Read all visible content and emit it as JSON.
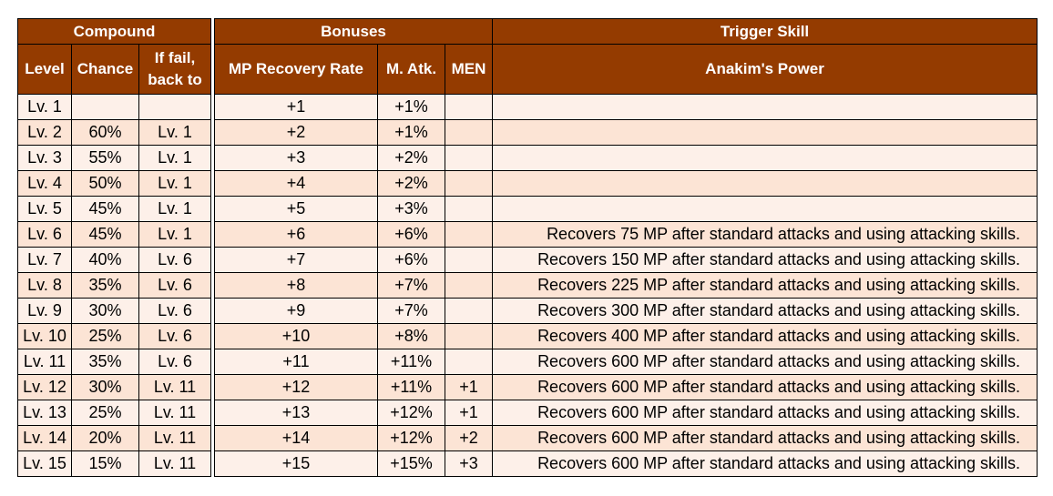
{
  "headers": {
    "compound": "Compound",
    "bonuses": "Bonuses",
    "trigger_skill": "Trigger Skill",
    "level": "Level",
    "chance": "Chance",
    "if_fail_line1": "If fail,",
    "if_fail_line2": "back to",
    "mp_recovery": "MP Recovery Rate",
    "m_atk": "M. Atk.",
    "men": "MEN",
    "skill_name": "Anakim's Power"
  },
  "rows": [
    {
      "level": "Lv. 1",
      "chance": "",
      "fail": "",
      "mp": "+1",
      "matk": "+1%",
      "men": "",
      "skill": ""
    },
    {
      "level": "Lv. 2",
      "chance": "60%",
      "fail": "Lv. 1",
      "mp": "+2",
      "matk": "+1%",
      "men": "",
      "skill": ""
    },
    {
      "level": "Lv. 3",
      "chance": "55%",
      "fail": "Lv. 1",
      "mp": "+3",
      "matk": "+2%",
      "men": "",
      "skill": ""
    },
    {
      "level": "Lv. 4",
      "chance": "50%",
      "fail": "Lv. 1",
      "mp": "+4",
      "matk": "+2%",
      "men": "",
      "skill": ""
    },
    {
      "level": "Lv. 5",
      "chance": "45%",
      "fail": "Lv. 1",
      "mp": "+5",
      "matk": "+3%",
      "men": "",
      "skill": ""
    },
    {
      "level": "Lv. 6",
      "chance": "45%",
      "fail": "Lv. 1",
      "mp": "+6",
      "matk": "+6%",
      "men": "",
      "skill": "Recovers 75 MP after standard attacks and using attacking skills."
    },
    {
      "level": "Lv. 7",
      "chance": "40%",
      "fail": "Lv. 6",
      "mp": "+7",
      "matk": "+6%",
      "men": "",
      "skill": "Recovers 150 MP after standard attacks and using attacking skills."
    },
    {
      "level": "Lv. 8",
      "chance": "35%",
      "fail": "Lv. 6",
      "mp": "+8",
      "matk": "+7%",
      "men": "",
      "skill": "Recovers 225 MP after standard attacks and using attacking skills."
    },
    {
      "level": "Lv. 9",
      "chance": "30%",
      "fail": "Lv. 6",
      "mp": "+9",
      "matk": "+7%",
      "men": "",
      "skill": "Recovers 300 MP after standard attacks and using attacking skills."
    },
    {
      "level": "Lv. 10",
      "chance": "25%",
      "fail": "Lv. 6",
      "mp": "+10",
      "matk": "+8%",
      "men": "",
      "skill": "Recovers 400 MP after standard attacks and using attacking skills."
    },
    {
      "level": "Lv. 11",
      "chance": "35%",
      "fail": "Lv. 6",
      "mp": "+11",
      "matk": "+11%",
      "men": "",
      "skill": "Recovers 600 MP after standard attacks and using attacking skills."
    },
    {
      "level": "Lv. 12",
      "chance": "30%",
      "fail": "Lv. 11",
      "mp": "+12",
      "matk": "+11%",
      "men": "+1",
      "skill": "Recovers 600 MP after standard attacks and using attacking skills."
    },
    {
      "level": "Lv. 13",
      "chance": "25%",
      "fail": "Lv. 11",
      "mp": "+13",
      "matk": "+12%",
      "men": "+1",
      "skill": "Recovers 600 MP after standard attacks and using attacking skills."
    },
    {
      "level": "Lv. 14",
      "chance": "20%",
      "fail": "Lv. 11",
      "mp": "+14",
      "matk": "+12%",
      "men": "+2",
      "skill": "Recovers 600 MP after standard attacks and using attacking skills."
    },
    {
      "level": "Lv. 15",
      "chance": "15%",
      "fail": "Lv. 11",
      "mp": "+15",
      "matk": "+15%",
      "men": "+3",
      "skill": "Recovers 600 MP after standard attacks and using attacking skills."
    }
  ],
  "colors": {
    "header_bg": "#943b00",
    "header_text": "#ffffff",
    "row_light": "#fdf0e9",
    "row_dark": "#fce4d5"
  }
}
